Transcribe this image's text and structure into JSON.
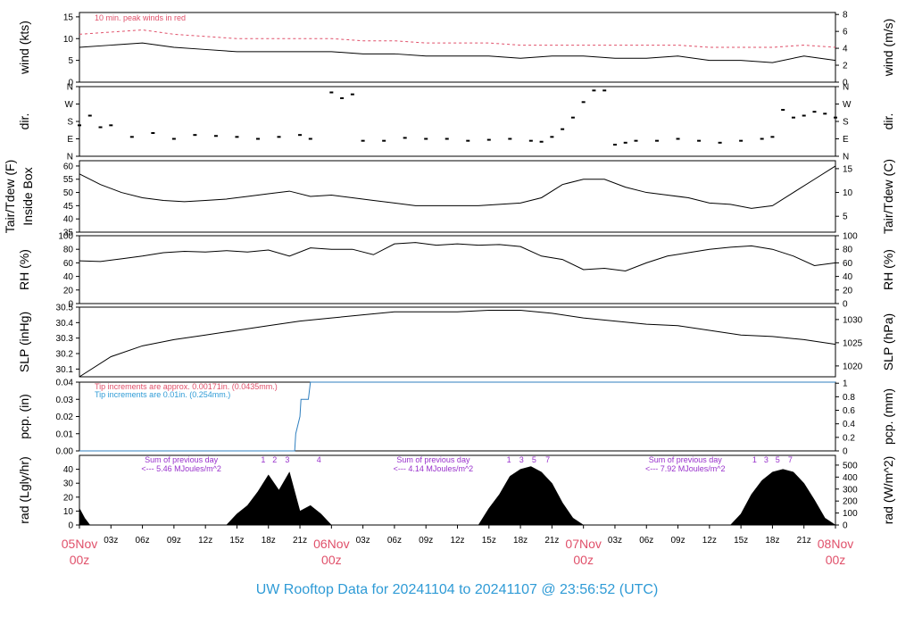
{
  "title": "UW Rooftop Data for 20241104  to  20241107 @ 23:56:52  (UTC)",
  "colors": {
    "title": "#2f9bd6",
    "date_labels": "#e0506a",
    "annotation_red": "#e0506a",
    "annotation_blue": "#2f9bd6",
    "annotation_purple": "#9932cc",
    "line": "#000000",
    "precip_blue": "#2f7fbf"
  },
  "x_axis": {
    "hours": [
      0,
      3,
      6,
      9,
      12,
      15,
      18,
      21,
      24,
      27,
      30,
      33,
      36,
      39,
      42,
      45,
      48,
      51,
      54,
      57,
      60,
      63,
      66,
      69,
      72
    ],
    "tick_labels": [
      "",
      "03z",
      "06z",
      "09z",
      "12z",
      "15z",
      "18z",
      "21z",
      "",
      "03z",
      "06z",
      "09z",
      "12z",
      "15z",
      "18z",
      "21z",
      "",
      "03z",
      "06z",
      "09z",
      "12z",
      "15z",
      "18z",
      "21z",
      ""
    ],
    "day_labels": [
      {
        "hour": 0,
        "date": "05Nov",
        "time": "00z"
      },
      {
        "hour": 24,
        "date": "06Nov",
        "time": "00z"
      },
      {
        "hour": 48,
        "date": "07Nov",
        "time": "00z"
      },
      {
        "hour": 72,
        "date": "08Nov",
        "time": "00z"
      }
    ]
  },
  "chart_data": [
    {
      "type": "line",
      "ylabel": "wind (kts)",
      "ylabel_right": "wind (m/s)",
      "ylim": [
        0,
        16
      ],
      "yticks": [
        "0",
        "5",
        "10",
        "15"
      ],
      "ytick_values": [
        0,
        5,
        10,
        15
      ],
      "yticks_right": [
        "0",
        "2",
        "4",
        "6",
        "8"
      ],
      "ytick_right_values": [
        0,
        3.89,
        7.78,
        11.66,
        15.55
      ],
      "annotation": "10 min. peak winds in red",
      "series": [
        {
          "name": "wind",
          "x": [
            0,
            3,
            6,
            9,
            12,
            15,
            18,
            21,
            24,
            27,
            30,
            33,
            36,
            39,
            42,
            45,
            48,
            51,
            54,
            57,
            60,
            63,
            66,
            69,
            72
          ],
          "y": [
            8,
            8.5,
            9,
            8,
            7.5,
            7,
            7,
            7,
            7,
            6.5,
            6.5,
            6,
            6,
            6,
            5.5,
            6,
            6,
            5.5,
            5.5,
            6,
            5,
            5,
            4.5,
            6,
            5
          ]
        },
        {
          "name": "10 min. peak winds",
          "x": [
            0,
            3,
            6,
            9,
            12,
            15,
            18,
            21,
            24,
            27,
            30,
            33,
            36,
            39,
            42,
            45,
            48,
            51,
            54,
            57,
            60,
            63,
            66,
            69,
            72
          ],
          "y": [
            11,
            11.5,
            12,
            11,
            10.5,
            10,
            10,
            10,
            10,
            9.5,
            9.5,
            9,
            9,
            9,
            8.5,
            8.5,
            8.5,
            8.5,
            8.5,
            8.5,
            8,
            8,
            8,
            8.5,
            8
          ]
        }
      ]
    },
    {
      "type": "scatter",
      "ylabel": "dir.",
      "ylabel_right": "dir.",
      "ylim": [
        0,
        360
      ],
      "yticks": [
        "N",
        "E",
        "S",
        "W",
        "N"
      ],
      "ytick_values": [
        0,
        90,
        180,
        270,
        360
      ],
      "yticks_right": [
        "N",
        "E",
        "S",
        "W",
        "N"
      ],
      "ytick_right_values": [
        0,
        90,
        180,
        270,
        360
      ],
      "series": [
        {
          "name": "dir",
          "x": [
            0,
            1,
            2,
            3,
            5,
            7,
            9,
            11,
            13,
            15,
            17,
            19,
            21,
            22,
            24,
            25,
            26,
            27,
            29,
            31,
            33,
            35,
            37,
            39,
            41,
            43,
            44,
            45,
            46,
            47,
            48,
            49,
            50,
            51,
            52,
            53,
            55,
            57,
            59,
            61,
            63,
            65,
            66,
            67,
            68,
            69,
            70,
            71,
            72
          ],
          "y": [
            160,
            210,
            150,
            160,
            100,
            120,
            90,
            110,
            105,
            100,
            90,
            100,
            110,
            90,
            330,
            300,
            320,
            80,
            80,
            95,
            90,
            90,
            80,
            85,
            90,
            80,
            75,
            100,
            140,
            200,
            280,
            340,
            340,
            60,
            70,
            80,
            80,
            90,
            80,
            70,
            80,
            90,
            100,
            240,
            200,
            210,
            230,
            220,
            200
          ]
        }
      ]
    },
    {
      "type": "line",
      "ylabel": "Tair/Tdew (F)\nInside Box",
      "ylabel_right": "Tair/Tdew (C)",
      "ylim": [
        35,
        62
      ],
      "yticks": [
        "35",
        "40",
        "45",
        "50",
        "55",
        "60"
      ],
      "ytick_values": [
        35,
        40,
        45,
        50,
        55,
        60
      ],
      "yticks_right": [
        "5",
        "10",
        "15"
      ],
      "ytick_right_values": [
        41,
        50,
        59
      ],
      "series": [
        {
          "name": "Tair",
          "x": [
            0,
            2,
            4,
            6,
            8,
            10,
            12,
            14,
            16,
            18,
            20,
            22,
            24,
            26,
            28,
            30,
            32,
            34,
            36,
            38,
            40,
            42,
            44,
            46,
            48,
            50,
            52,
            54,
            56,
            58,
            60,
            62,
            64,
            66,
            68,
            70,
            72
          ],
          "y": [
            57,
            53,
            50,
            48,
            47,
            46.5,
            47,
            47.5,
            48.5,
            49.5,
            50.5,
            48.5,
            49,
            48,
            47,
            46,
            45,
            45,
            45,
            45,
            45.5,
            46,
            48,
            53,
            55,
            55,
            52,
            50,
            49,
            48,
            46,
            45.5,
            44,
            45,
            50,
            55,
            60
          ]
        }
      ]
    },
    {
      "type": "line",
      "ylabel": "RH (%)",
      "ylabel_right": "RH (%)",
      "ylim": [
        0,
        100
      ],
      "yticks": [
        "0",
        "20",
        "40",
        "60",
        "80",
        "100"
      ],
      "ytick_values": [
        0,
        20,
        40,
        60,
        80,
        100
      ],
      "yticks_right": [
        "0",
        "20",
        "40",
        "60",
        "80",
        "100"
      ],
      "ytick_right_values": [
        0,
        20,
        40,
        60,
        80,
        100
      ],
      "series": [
        {
          "name": "RH",
          "x": [
            0,
            2,
            4,
            6,
            8,
            10,
            12,
            14,
            16,
            18,
            20,
            22,
            24,
            26,
            28,
            30,
            32,
            34,
            36,
            38,
            40,
            42,
            44,
            46,
            48,
            50,
            52,
            54,
            56,
            58,
            60,
            62,
            64,
            66,
            68,
            70,
            72
          ],
          "y": [
            63,
            62,
            66,
            70,
            75,
            77,
            76,
            78,
            76,
            79,
            70,
            82,
            80,
            80,
            72,
            88,
            90,
            86,
            88,
            86,
            87,
            84,
            70,
            65,
            50,
            52,
            48,
            60,
            70,
            75,
            80,
            83,
            85,
            80,
            70,
            56,
            60
          ]
        }
      ]
    },
    {
      "type": "line",
      "ylabel": "SLP (inHg)",
      "ylabel_right": "SLP (hPa)",
      "ylim": [
        30.05,
        30.5
      ],
      "yticks": [
        "30.1",
        "30.2",
        "30.3",
        "30.4",
        "30.5"
      ],
      "ytick_values": [
        30.1,
        30.2,
        30.3,
        30.4,
        30.5
      ],
      "yticks_right": [
        "1020",
        "1025",
        "1030"
      ],
      "ytick_right_values": [
        30.12,
        30.27,
        30.42
      ],
      "series": [
        {
          "name": "SLP",
          "x": [
            0,
            3,
            6,
            9,
            12,
            15,
            18,
            21,
            24,
            27,
            30,
            33,
            36,
            39,
            42,
            45,
            48,
            51,
            54,
            57,
            60,
            63,
            66,
            69,
            72
          ],
          "y": [
            30.05,
            30.18,
            30.25,
            30.29,
            30.32,
            30.35,
            30.38,
            30.41,
            30.43,
            30.45,
            30.47,
            30.47,
            30.47,
            30.48,
            30.48,
            30.46,
            30.43,
            30.41,
            30.39,
            30.38,
            30.35,
            30.32,
            30.31,
            30.29,
            30.26
          ]
        }
      ]
    },
    {
      "type": "line",
      "ylabel": "pcp. (in)",
      "ylabel_right": "pcp. (mm)",
      "ylim": [
        0,
        0.04
      ],
      "yticks": [
        "0.00",
        "0.01",
        "0.02",
        "0.03",
        "0.04"
      ],
      "ytick_values": [
        0,
        0.01,
        0.02,
        0.03,
        0.04
      ],
      "yticks_right": [
        "0",
        "0.2",
        "0.4",
        "0.6",
        "0.8",
        "1"
      ],
      "ytick_right_values": [
        0,
        0.00787,
        0.01575,
        0.02362,
        0.0315,
        0.03937
      ],
      "annotations": [
        "Tip increments are approx. 0.00171in. (0.0435mm.)",
        "Tip increments are 0.01in. (0.254mm.)"
      ],
      "series": [
        {
          "name": "pcp",
          "x": [
            0,
            20.5,
            20.6,
            21.0,
            21.1,
            21.8,
            22.0,
            72
          ],
          "y": [
            0,
            0,
            0.01,
            0.02,
            0.03,
            0.03,
            0.04,
            0.04
          ]
        }
      ]
    },
    {
      "type": "area",
      "ylabel": "rad (Lgly/hr)",
      "ylabel_right": "rad (W/m^2)",
      "ylim": [
        0,
        50
      ],
      "yticks": [
        "0",
        "10",
        "20",
        "30",
        "40"
      ],
      "ytick_values": [
        0,
        10,
        20,
        30,
        40
      ],
      "yticks_right": [
        "0",
        "100",
        "200",
        "300",
        "400",
        "500"
      ],
      "ytick_right_values": [
        0,
        8.6,
        17.2,
        25.8,
        34.4,
        43
      ],
      "day_sums": [
        {
          "hour": 8,
          "line1": "Sum of previous day",
          "line2": "<--- 5.46 MJoules/m^2"
        },
        {
          "hour": 32,
          "line1": "Sum of previous day",
          "line2": "<--- 4.14 MJoules/m^2"
        },
        {
          "hour": 56,
          "line1": "Sum of previous day",
          "line2": "<--- 7.92 MJoules/m^2"
        }
      ],
      "hour_markers": [
        {
          "hour": 17.5,
          "label": "1"
        },
        {
          "hour": 18.6,
          "label": "2"
        },
        {
          "hour": 19.8,
          "label": "3"
        },
        {
          "hour": 22.8,
          "label": "4"
        },
        {
          "hour": 40.9,
          "label": "1"
        },
        {
          "hour": 42.1,
          "label": "3"
        },
        {
          "hour": 43.3,
          "label": "5"
        },
        {
          "hour": 44.6,
          "label": "7"
        },
        {
          "hour": 64.3,
          "label": "1"
        },
        {
          "hour": 65.4,
          "label": "3"
        },
        {
          "hour": 66.5,
          "label": "5"
        },
        {
          "hour": 67.7,
          "label": "7"
        }
      ],
      "series": [
        {
          "name": "rad",
          "x": [
            0,
            0.5,
            1,
            14,
            15,
            16,
            17,
            18,
            19,
            20,
            21,
            22,
            23,
            24,
            38,
            39,
            40,
            41,
            42,
            43,
            44,
            45,
            46,
            47,
            48,
            62,
            63,
            64,
            65,
            66,
            67,
            68,
            69,
            70,
            71,
            72
          ],
          "y": [
            12,
            5,
            0,
            0,
            8,
            14,
            24,
            36,
            25,
            38,
            10,
            14,
            8,
            0,
            0,
            12,
            22,
            35,
            40,
            42,
            38,
            30,
            16,
            5,
            0,
            0,
            8,
            22,
            32,
            38,
            40,
            38,
            30,
            18,
            5,
            0
          ]
        }
      ]
    }
  ]
}
